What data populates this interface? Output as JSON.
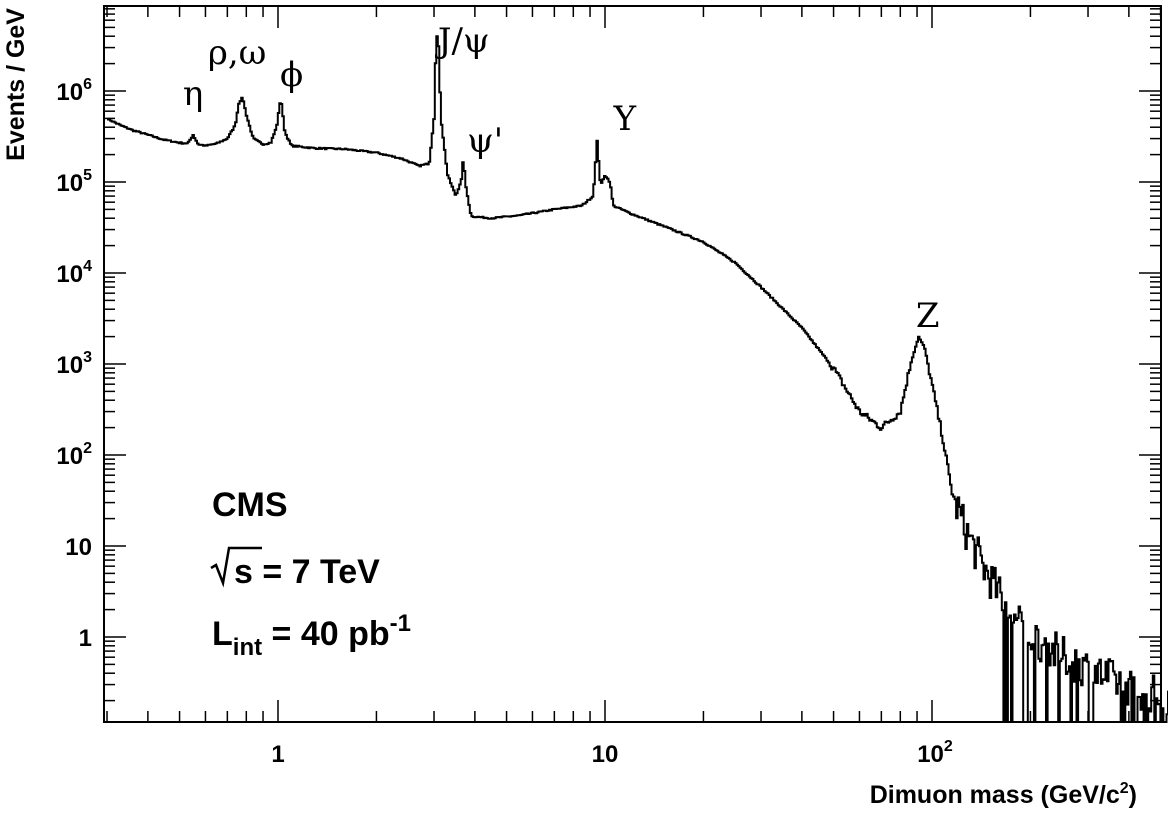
{
  "chart_data": {
    "type": "line",
    "xlabel": "Dimuon mass (GeV/c",
    "xlabel_sup": "2",
    "xlabel_close": ")",
    "ylabel": "Events / GeV",
    "xscale": "log",
    "yscale": "log",
    "xlim": [
      0.3,
      600
    ],
    "ylim": [
      0.1,
      10000000
    ],
    "grid": false,
    "x_ticks": [
      {
        "value": 1,
        "label": "1",
        "exp": ""
      },
      {
        "value": 10,
        "label": "10",
        "exp": ""
      },
      {
        "value": 100,
        "label": "10",
        "exp": "2"
      }
    ],
    "y_ticks": [
      {
        "value": 1,
        "label": "1",
        "exp": ""
      },
      {
        "value": 10,
        "label": "10",
        "exp": ""
      },
      {
        "value": 100,
        "label": "10",
        "exp": "2"
      },
      {
        "value": 1000,
        "label": "10",
        "exp": "3"
      },
      {
        "value": 10000,
        "label": "10",
        "exp": "4"
      },
      {
        "value": 100000,
        "label": "10",
        "exp": "5"
      },
      {
        "value": 1000000,
        "label": "10",
        "exp": "6"
      }
    ],
    "annotations": [
      {
        "text": "η",
        "x": 0.55
      },
      {
        "text": "ρ,ω",
        "x": 0.75
      },
      {
        "text": "ϕ",
        "x": 1.1
      },
      {
        "text": "J/ψ",
        "x": 3.7
      },
      {
        "text": "ψ'",
        "x": 4.3
      },
      {
        "text": "Y",
        "x": 11.5
      },
      {
        "text": "Z",
        "x": 97
      }
    ],
    "info": {
      "experiment": "CMS",
      "energy": "s = 7 TeV",
      "lumi_main": "L",
      "lumi_sub": "int",
      "lumi_value": " = 40 pb",
      "lumi_exp": "-1"
    },
    "series": [
      {
        "points": [
          [
            0.3,
            500000
          ],
          [
            0.33,
            420000
          ],
          [
            0.36,
            370000
          ],
          [
            0.4,
            330000
          ],
          [
            0.45,
            290000
          ],
          [
            0.5,
            270000
          ],
          [
            0.53,
            265000
          ],
          [
            0.55,
            330000
          ],
          [
            0.57,
            260000
          ],
          [
            0.6,
            250000
          ],
          [
            0.65,
            265000
          ],
          [
            0.7,
            300000
          ],
          [
            0.74,
            420000
          ],
          [
            0.76,
            750000
          ],
          [
            0.78,
            850000
          ],
          [
            0.8,
            550000
          ],
          [
            0.84,
            300000
          ],
          [
            0.9,
            260000
          ],
          [
            0.95,
            270000
          ],
          [
            0.99,
            400000
          ],
          [
            1.02,
            850000
          ],
          [
            1.05,
            350000
          ],
          [
            1.1,
            250000
          ],
          [
            1.3,
            235000
          ],
          [
            1.6,
            230000
          ],
          [
            2.0,
            210000
          ],
          [
            2.4,
            180000
          ],
          [
            2.7,
            150000
          ],
          [
            2.9,
            160000
          ],
          [
            3.0,
            500000
          ],
          [
            3.05,
            4500000
          ],
          [
            3.1,
            3000000
          ],
          [
            3.15,
            500000
          ],
          [
            3.3,
            120000
          ],
          [
            3.5,
            70000
          ],
          [
            3.65,
            110000
          ],
          [
            3.69,
            190000
          ],
          [
            3.75,
            90000
          ],
          [
            3.9,
            42000
          ],
          [
            4.5,
            40000
          ],
          [
            5.5,
            43000
          ],
          [
            7.0,
            50000
          ],
          [
            8.5,
            55000
          ],
          [
            9.2,
            70000
          ],
          [
            9.46,
            280000
          ],
          [
            9.7,
            90000
          ],
          [
            10.0,
            120000
          ],
          [
            10.36,
            100000
          ],
          [
            10.6,
            55000
          ],
          [
            12,
            45000
          ],
          [
            15,
            33000
          ],
          [
            20,
            22000
          ],
          [
            25,
            13000
          ],
          [
            30,
            7000
          ],
          [
            40,
            2500
          ],
          [
            50,
            900
          ],
          [
            60,
            300
          ],
          [
            70,
            200
          ],
          [
            80,
            300
          ],
          [
            86,
            1000
          ],
          [
            91,
            2000
          ],
          [
            95,
            1500
          ],
          [
            100,
            600
          ],
          [
            108,
            150
          ],
          [
            115,
            40
          ],
          [
            125,
            17
          ],
          [
            140,
            7
          ],
          [
            160,
            3
          ],
          [
            180,
            1.5
          ],
          [
            220,
            0.8
          ],
          [
            280,
            0.5
          ],
          [
            350,
            0.35
          ],
          [
            450,
            0.25
          ],
          [
            550,
            0.2
          ]
        ]
      }
    ]
  }
}
